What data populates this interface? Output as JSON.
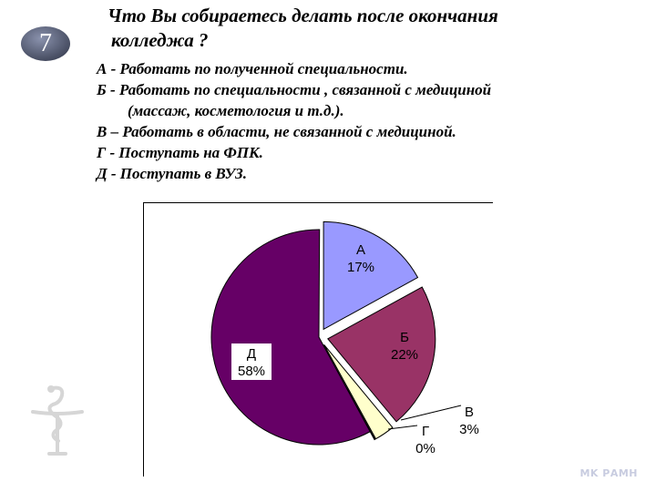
{
  "slide": {
    "number": "7",
    "question_line1": "Что Вы собираетесь делать после окончания",
    "question_line2": "колледжа ?",
    "footer": "MK РАМН"
  },
  "options": [
    {
      "line1": "А - Работать по полученной специальности.",
      "line2": ""
    },
    {
      "line1": "Б - Работать по специальности , связанной с медициной",
      "line2": "(массаж, косметология и т.д.)."
    },
    {
      "line1": "В – Работать в области, не связанной с медициной.",
      "line2": ""
    },
    {
      "line1": "Г - Поступать на ФПК.",
      "line2": ""
    },
    {
      "line1": "Д - Поступать в ВУЗ.",
      "line2": ""
    }
  ],
  "colors": {
    "badge": "#5a6178",
    "slice_a": "#9999ff",
    "slice_b": "#993366",
    "slice_v": "#ffffcc",
    "slice_g": "#ccffff",
    "slice_d": "#660066"
  },
  "chart_data": {
    "type": "pie",
    "exploded": true,
    "slices": [
      {
        "category": "А",
        "value": 17,
        "label": "17%",
        "color": "#9999ff"
      },
      {
        "category": "Б",
        "value": 22,
        "label": "22%",
        "color": "#993366"
      },
      {
        "category": "В",
        "value": 3,
        "label": "3%",
        "color": "#ffffcc"
      },
      {
        "category": "Г",
        "value": 0,
        "label": "0%",
        "color": "#ccffff"
      },
      {
        "category": "Д",
        "value": 58,
        "label": "58%",
        "color": "#660066"
      }
    ]
  }
}
